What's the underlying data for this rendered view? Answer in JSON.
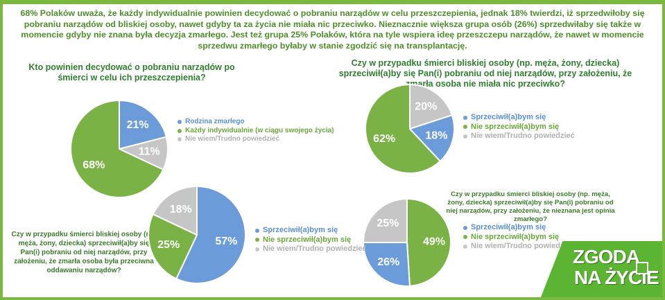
{
  "intro": {
    "text": "68% Polaków uważa, że każdy indywidualnie powinien decydować o pobraniu narządów w celu przeszczepienia, jednak 18% twierdzi, iż sprzedwiłoby się pobraniu narządów od bliskiej osoby, nawet gdyby ta za życia nie miała nic przeciwko.  Nieznacznie większa grupa osób (26%) sprzedwiłaby się także w momencie gdyby nie znana była decyzja zmarłego. Jest też grupa 25% Polaków, która na tyle wspiera ideę przeszczepu narządów, że nawet w momencie sprzedwu zmarłego byłaby w stanie zgodzić się na transplantację."
  },
  "colors": {
    "blue": "#6b9bd8",
    "green": "#7ab246",
    "gray": "#c6c6c6",
    "dark_green_text": "#2f7d2f",
    "logo_green": "#5bb432"
  },
  "chart_data": [
    {
      "type": "pie",
      "title": "Kto powinien decydować o pobraniu narządów po śmierci w celu ich przeszczepienia?",
      "categories": [
        "Rodzina zmarłego",
        "Każdy indywidualnie (w ciągu swojego życia)",
        "Nie wiem/Trudno powiedzieć"
      ],
      "values": [
        21,
        68,
        11
      ],
      "labels": [
        "21%",
        "68%",
        "11%"
      ],
      "colors": [
        "#6b9bd8",
        "#7ab246",
        "#c6c6c6"
      ],
      "legend": "right"
    },
    {
      "type": "pie",
      "title": "Czy w przypadku śmierci bliskiej osoby (np. męża, żony, dziecka) sprzeciwił(a)by się Pan(i) pobraniu od niej narządów, przy założeniu, że zmarła osoba nie miała nic przeciwko?",
      "categories": [
        "Sprzeciwił(a)bym się",
        "Nie sprzeciwił(a)bym się",
        "Nie wiem/Trudno powiedzieć"
      ],
      "values": [
        18,
        62,
        20
      ],
      "labels": [
        "18%",
        "62%",
        "20%"
      ],
      "colors": [
        "#6b9bd8",
        "#7ab246",
        "#c6c6c6"
      ],
      "legend": "right"
    },
    {
      "type": "pie",
      "title": "Czy w przypadku śmierci bliskiej osoby (np. męża, żony, dziecka) sprzeciwił(a)by się Pan(i) pobraniu od niej narządów, przy założeniu, że zmarła osoba była przeciwna oddawaniu narządów?",
      "categories": [
        "Sprzeciwił(a)bym się",
        "Nie sprzeciwił(a)bym się",
        "Nie wiem/Trudno powiedzieć"
      ],
      "values": [
        57,
        25,
        18
      ],
      "labels": [
        "57%",
        "25%",
        "18%"
      ],
      "colors": [
        "#6b9bd8",
        "#7ab246",
        "#c6c6c6"
      ],
      "legend": "right"
    },
    {
      "type": "pie",
      "title": "Czy w przypadku śmierci bliskiej osoby (np. męża, żony, dziecka) sprzeciwił(a)by się Pan(i) pobraniu od niej narządów, przy założeniu, że nieznana jest opinia zmarłego?",
      "categories": [
        "Sprzeciwił(a)bym się",
        "Nie sprzeciwił(a)bym się",
        "Nie wiem/Trudno powiedzieć"
      ],
      "values": [
        26,
        49,
        25
      ],
      "labels": [
        "26%",
        "49%",
        "25%"
      ],
      "colors": [
        "#6b9bd8",
        "#7ab246",
        "#c6c6c6"
      ],
      "legend": "right"
    }
  ],
  "logo": {
    "line1": "ZGODA",
    "line2": "NA ŻYCIE"
  }
}
